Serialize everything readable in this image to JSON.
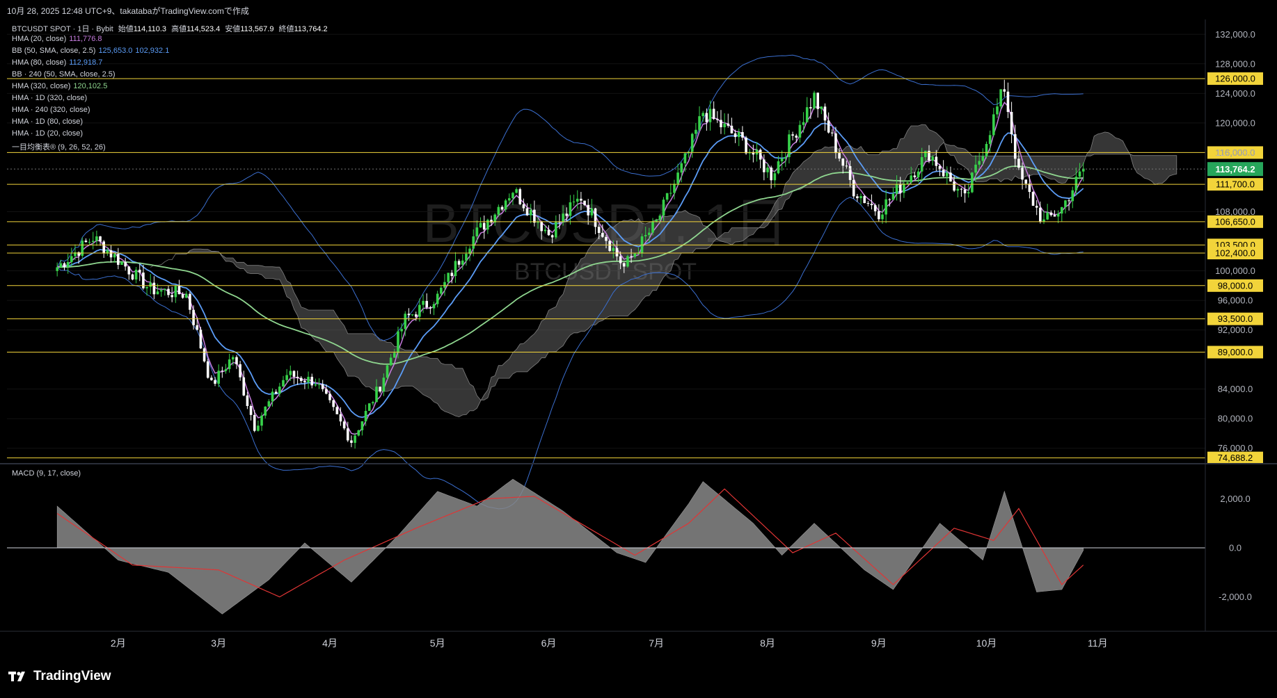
{
  "header": {
    "caption": "10月 28, 2025 12:48 UTC+9、takatabaがTradingView.comで作成"
  },
  "watermark": {
    "title": "BTCUSDT, 1日",
    "subtitle": "BTCUSDT SPOT"
  },
  "legend": {
    "symbol": "BTCUSDT SPOT · 1日 · Bybit",
    "o_label": "始値",
    "o_val": "114,110.3",
    "h_label": "高値",
    "h_val": "114,523.4",
    "l_label": "安値",
    "l_val": "113,567.9",
    "c_label": "終値",
    "c_val": "113,764.2",
    "indicators": [
      {
        "name": "HMA (20, close)",
        "v1": "111,776.8",
        "v2": "",
        "c1": "#c77ddf",
        "c2": ""
      },
      {
        "name": "BB (50, SMA, close, 2.5)",
        "v1": "125,653.0",
        "v2": "102,932.1",
        "c1": "#5b9cf6",
        "c2": "#5b9cf6"
      },
      {
        "name": "HMA (80, close)",
        "v1": "112,918.7",
        "v2": "",
        "c1": "#5b9cf6",
        "c2": ""
      },
      {
        "name": "BB · 240 (50, SMA, close, 2.5)",
        "v1": "",
        "v2": "",
        "c1": "",
        "c2": ""
      },
      {
        "name": "HMA (320, close)",
        "v1": "120,102.5",
        "v2": "",
        "c1": "#8fd68f",
        "c2": ""
      },
      {
        "name": "HMA · 1D (320, close)",
        "v1": "",
        "v2": "",
        "c1": "",
        "c2": ""
      },
      {
        "name": "HMA · 240 (320, close)",
        "v1": "",
        "v2": "",
        "c1": "",
        "c2": ""
      },
      {
        "name": "HMA · 1D (80, close)",
        "v1": "",
        "v2": "",
        "c1": "",
        "c2": ""
      },
      {
        "name": "HMA · 1D (20, close)",
        "v1": "",
        "v2": "",
        "c1": "",
        "c2": ""
      },
      {
        "name": "一目均衡表® (9, 26, 52, 26)",
        "v1": "",
        "v2": "",
        "c1": "",
        "c2": ""
      }
    ],
    "macd": "MACD (9, 17, close)"
  },
  "footer": {
    "brand": "TradingView"
  },
  "colors": {
    "background": "#000000",
    "level_line": "#f2d43a",
    "up": "#37d24a",
    "down": "#ffffff",
    "price_badge": "#26a65b",
    "hma20": "#c77ddf",
    "hma80": "#5b9cf6",
    "hma320": "#8fd68f",
    "bb": "#3b6fd0",
    "cloud": "#777777",
    "macd_hist": "#888888",
    "macd_signal": "#e03535"
  },
  "chart_data": [
    {
      "type": "candlestick",
      "interval": "1日",
      "y_ticks": [
        132000,
        128000,
        124000,
        120000,
        116000,
        108000,
        100000,
        96000,
        92000,
        84000,
        80000,
        76000
      ],
      "y_tick_labels": [
        "132,000.0",
        "128,000.0",
        "124,000.0",
        "120,000.0",
        "116,000.0",
        "108,000.0",
        "100,000.0",
        "96,000.0",
        "92,000.0",
        "84,000.0",
        "80,000.0",
        "76,000.0"
      ],
      "ylim": [
        74000,
        134000
      ],
      "x_month_labels": [
        "2月",
        "3月",
        "4月",
        "5月",
        "6月",
        "7月",
        "8月",
        "9月",
        "10月",
        "11月"
      ],
      "horizontal_levels": [
        126000,
        116000,
        111700,
        106650,
        103500,
        102400,
        98000,
        93500,
        89000,
        74688.2
      ],
      "level_labels": [
        "126,000.0",
        "116,000.0",
        "111,700.0",
        "106,650.0",
        "103,500.0",
        "102,400.0",
        "98,000.0",
        "93,500.0",
        "89,000.0",
        "74,688.2"
      ],
      "current_price": 113764.2,
      "current_price_label": "113,764.2",
      "close_series": [
        {
          "date": "2025-01-15",
          "value": 100500
        },
        {
          "date": "2025-01-25",
          "value": 104500
        },
        {
          "date": "2025-02-01",
          "value": 101500
        },
        {
          "date": "2025-02-10",
          "value": 97500
        },
        {
          "date": "2025-02-20",
          "value": 96800
        },
        {
          "date": "2025-02-27",
          "value": 84500
        },
        {
          "date": "2025-03-05",
          "value": 88500
        },
        {
          "date": "2025-03-11",
          "value": 79000
        },
        {
          "date": "2025-03-20",
          "value": 86000
        },
        {
          "date": "2025-03-28",
          "value": 85000
        },
        {
          "date": "2025-04-07",
          "value": 77000
        },
        {
          "date": "2025-04-15",
          "value": 84500
        },
        {
          "date": "2025-04-22",
          "value": 93500
        },
        {
          "date": "2025-05-01",
          "value": 96500
        },
        {
          "date": "2025-05-10",
          "value": 104000
        },
        {
          "date": "2025-05-22",
          "value": 111000
        },
        {
          "date": "2025-06-01",
          "value": 105000
        },
        {
          "date": "2025-06-10",
          "value": 110000
        },
        {
          "date": "2025-06-22",
          "value": 100500
        },
        {
          "date": "2025-07-01",
          "value": 106500
        },
        {
          "date": "2025-07-10",
          "value": 116000
        },
        {
          "date": "2025-07-14",
          "value": 121500
        },
        {
          "date": "2025-07-25",
          "value": 117500
        },
        {
          "date": "2025-08-02",
          "value": 113000
        },
        {
          "date": "2025-08-14",
          "value": 123500
        },
        {
          "date": "2025-08-25",
          "value": 111000
        },
        {
          "date": "2025-09-01",
          "value": 108000
        },
        {
          "date": "2025-09-15",
          "value": 116000
        },
        {
          "date": "2025-09-25",
          "value": 109500
        },
        {
          "date": "2025-10-06",
          "value": 124800
        },
        {
          "date": "2025-10-10",
          "value": 113000
        },
        {
          "date": "2025-10-17",
          "value": 106500
        },
        {
          "date": "2025-10-22",
          "value": 108500
        },
        {
          "date": "2025-10-28",
          "value": 113764
        }
      ]
    },
    {
      "type": "area",
      "title": "MACD (9, 17, close)",
      "y_ticks": [
        2000,
        0,
        -2000
      ],
      "y_tick_labels": [
        "2,000.0",
        "0.0",
        "-2,000.0"
      ],
      "ylim": [
        -3400,
        3400
      ],
      "histogram": [
        {
          "date": "2025-01-15",
          "value": 1700
        },
        {
          "date": "2025-02-01",
          "value": -500
        },
        {
          "date": "2025-02-15",
          "value": -1000
        },
        {
          "date": "2025-03-02",
          "value": -2700
        },
        {
          "date": "2025-03-15",
          "value": -1300
        },
        {
          "date": "2025-03-25",
          "value": 200
        },
        {
          "date": "2025-04-07",
          "value": -1400
        },
        {
          "date": "2025-04-20",
          "value": 500
        },
        {
          "date": "2025-05-01",
          "value": 2300
        },
        {
          "date": "2025-05-12",
          "value": 1700
        },
        {
          "date": "2025-05-22",
          "value": 2800
        },
        {
          "date": "2025-06-05",
          "value": 1500
        },
        {
          "date": "2025-06-20",
          "value": -200
        },
        {
          "date": "2025-06-28",
          "value": -600
        },
        {
          "date": "2025-07-10",
          "value": 1800
        },
        {
          "date": "2025-07-14",
          "value": 2700
        },
        {
          "date": "2025-07-28",
          "value": 1000
        },
        {
          "date": "2025-08-05",
          "value": -300
        },
        {
          "date": "2025-08-14",
          "value": 1000
        },
        {
          "date": "2025-08-28",
          "value": -900
        },
        {
          "date": "2025-09-05",
          "value": -1700
        },
        {
          "date": "2025-09-18",
          "value": 1000
        },
        {
          "date": "2025-09-30",
          "value": -500
        },
        {
          "date": "2025-10-06",
          "value": 2300
        },
        {
          "date": "2025-10-15",
          "value": -1800
        },
        {
          "date": "2025-10-22",
          "value": -1700
        },
        {
          "date": "2025-10-28",
          "value": -100
        }
      ],
      "signal": [
        {
          "date": "2025-01-15",
          "value": 1400
        },
        {
          "date": "2025-02-05",
          "value": -700
        },
        {
          "date": "2025-03-01",
          "value": -900
        },
        {
          "date": "2025-03-18",
          "value": -2000
        },
        {
          "date": "2025-04-05",
          "value": -500
        },
        {
          "date": "2025-04-25",
          "value": 800
        },
        {
          "date": "2025-05-15",
          "value": 2000
        },
        {
          "date": "2025-05-28",
          "value": 2100
        },
        {
          "date": "2025-06-25",
          "value": -300
        },
        {
          "date": "2025-07-10",
          "value": 1000
        },
        {
          "date": "2025-07-20",
          "value": 2400
        },
        {
          "date": "2025-08-08",
          "value": -200
        },
        {
          "date": "2025-08-20",
          "value": 600
        },
        {
          "date": "2025-09-05",
          "value": -1500
        },
        {
          "date": "2025-09-22",
          "value": 800
        },
        {
          "date": "2025-10-03",
          "value": 300
        },
        {
          "date": "2025-10-10",
          "value": 1600
        },
        {
          "date": "2025-10-22",
          "value": -1500
        },
        {
          "date": "2025-10-28",
          "value": -700
        }
      ]
    }
  ]
}
